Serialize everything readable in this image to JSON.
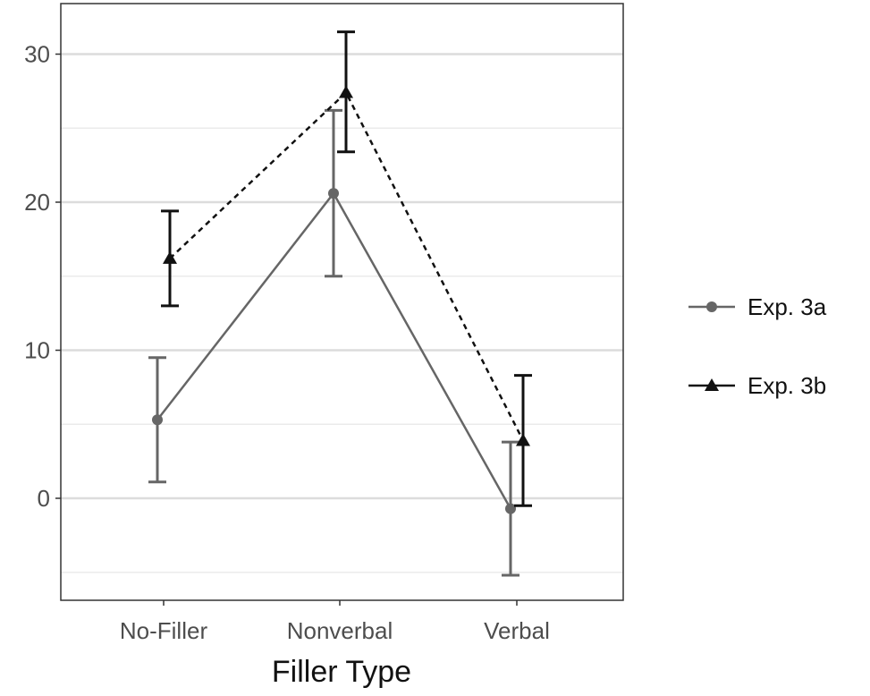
{
  "chart_data": {
    "type": "line",
    "title": "",
    "xlabel": "Filler Type",
    "ylabel": "",
    "categories": [
      "No-Filler",
      "Nonverbal",
      "Verbal"
    ],
    "ylim": [
      -7,
      33.5
    ],
    "yticks": [
      0,
      10,
      20,
      30
    ],
    "minor_yticks": [
      -5,
      5,
      15,
      25
    ],
    "grid": true,
    "legend_position": "right",
    "series": [
      {
        "name": "Exp. 3a",
        "values": [
          5.3,
          20.6,
          -0.7
        ],
        "error_low": [
          1.1,
          15.0,
          -5.2
        ],
        "error_high": [
          9.5,
          26.2,
          3.8
        ],
        "color": "#666666",
        "marker": "circle",
        "linestyle": "solid"
      },
      {
        "name": "Exp. 3b",
        "values": [
          16.2,
          27.4,
          3.9
        ],
        "error_low": [
          13.0,
          23.4,
          -0.5
        ],
        "error_high": [
          19.4,
          31.5,
          8.3
        ],
        "color": "#111111",
        "marker": "triangle",
        "linestyle": "dashed"
      }
    ]
  }
}
